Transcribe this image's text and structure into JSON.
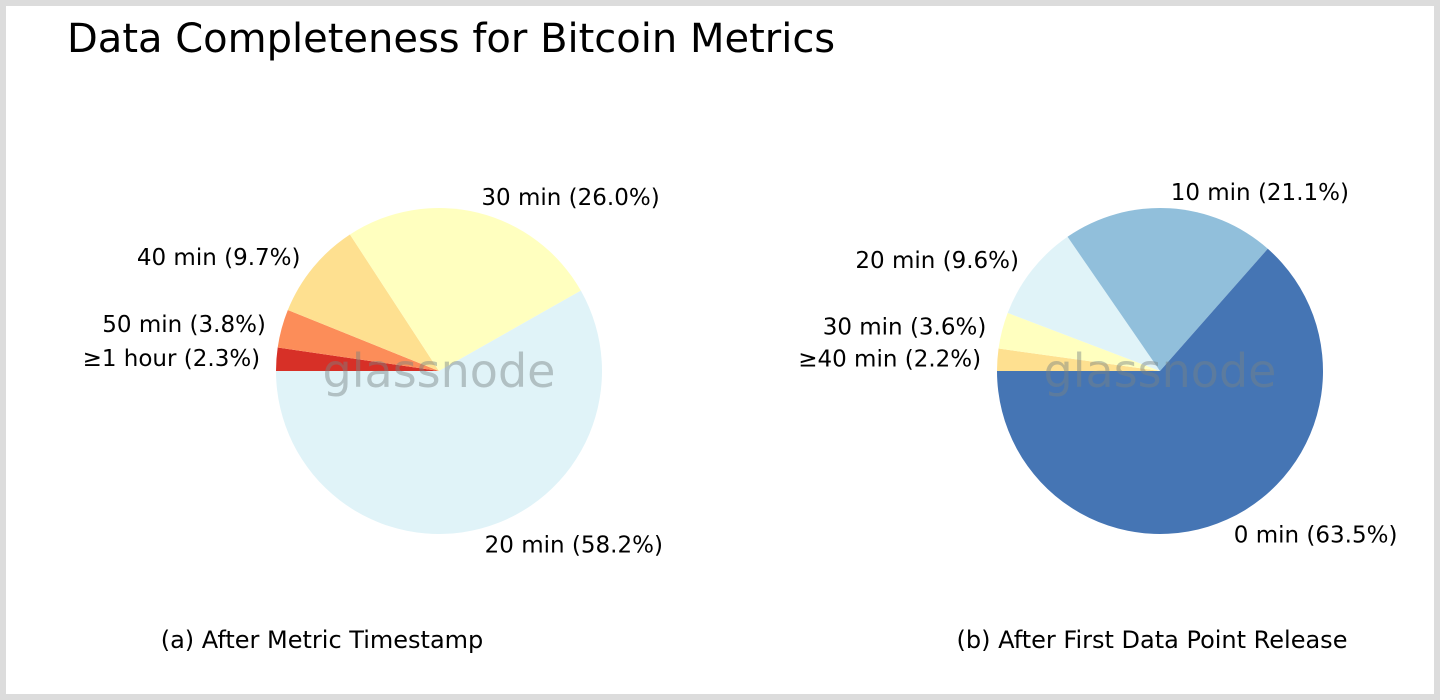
{
  "title": "Data Completeness for Bitcoin Metrics",
  "watermark": "glassnode",
  "chart_data": [
    {
      "type": "pie",
      "caption": "(a) After Metric Timestamp",
      "start_angle_deg": 180,
      "direction": "clockwise",
      "slices": [
        {
          "label": "≥1 hour",
          "value": 2.3,
          "pct_label": "(2.3%)",
          "color": "#d73027"
        },
        {
          "label": "50 min",
          "value": 3.8,
          "pct_label": "(3.8%)",
          "color": "#fc8d59"
        },
        {
          "label": "40 min",
          "value": 9.7,
          "pct_label": "(9.7%)",
          "color": "#fee090"
        },
        {
          "label": "30 min",
          "value": 26.0,
          "pct_label": "(26.0%)",
          "color": "#ffffbf"
        },
        {
          "label": "20 min",
          "value": 58.2,
          "pct_label": "(58.2%)",
          "color": "#e0f3f8"
        }
      ]
    },
    {
      "type": "pie",
      "caption": "(b) After First Data Point Release",
      "start_angle_deg": 180,
      "direction": "clockwise",
      "slices": [
        {
          "label": "≥40 min",
          "value": 2.2,
          "pct_label": "(2.2%)",
          "color": "#fee090"
        },
        {
          "label": "30 min",
          "value": 3.6,
          "pct_label": "(3.6%)",
          "color": "#ffffbf"
        },
        {
          "label": "20 min",
          "value": 9.6,
          "pct_label": "(9.6%)",
          "color": "#e0f3f8"
        },
        {
          "label": "10 min",
          "value": 21.1,
          "pct_label": "(21.1%)",
          "color": "#91bfdb"
        },
        {
          "label": "0 min",
          "value": 63.5,
          "pct_label": "(63.5%)",
          "color": "#4575b4"
        }
      ]
    }
  ]
}
